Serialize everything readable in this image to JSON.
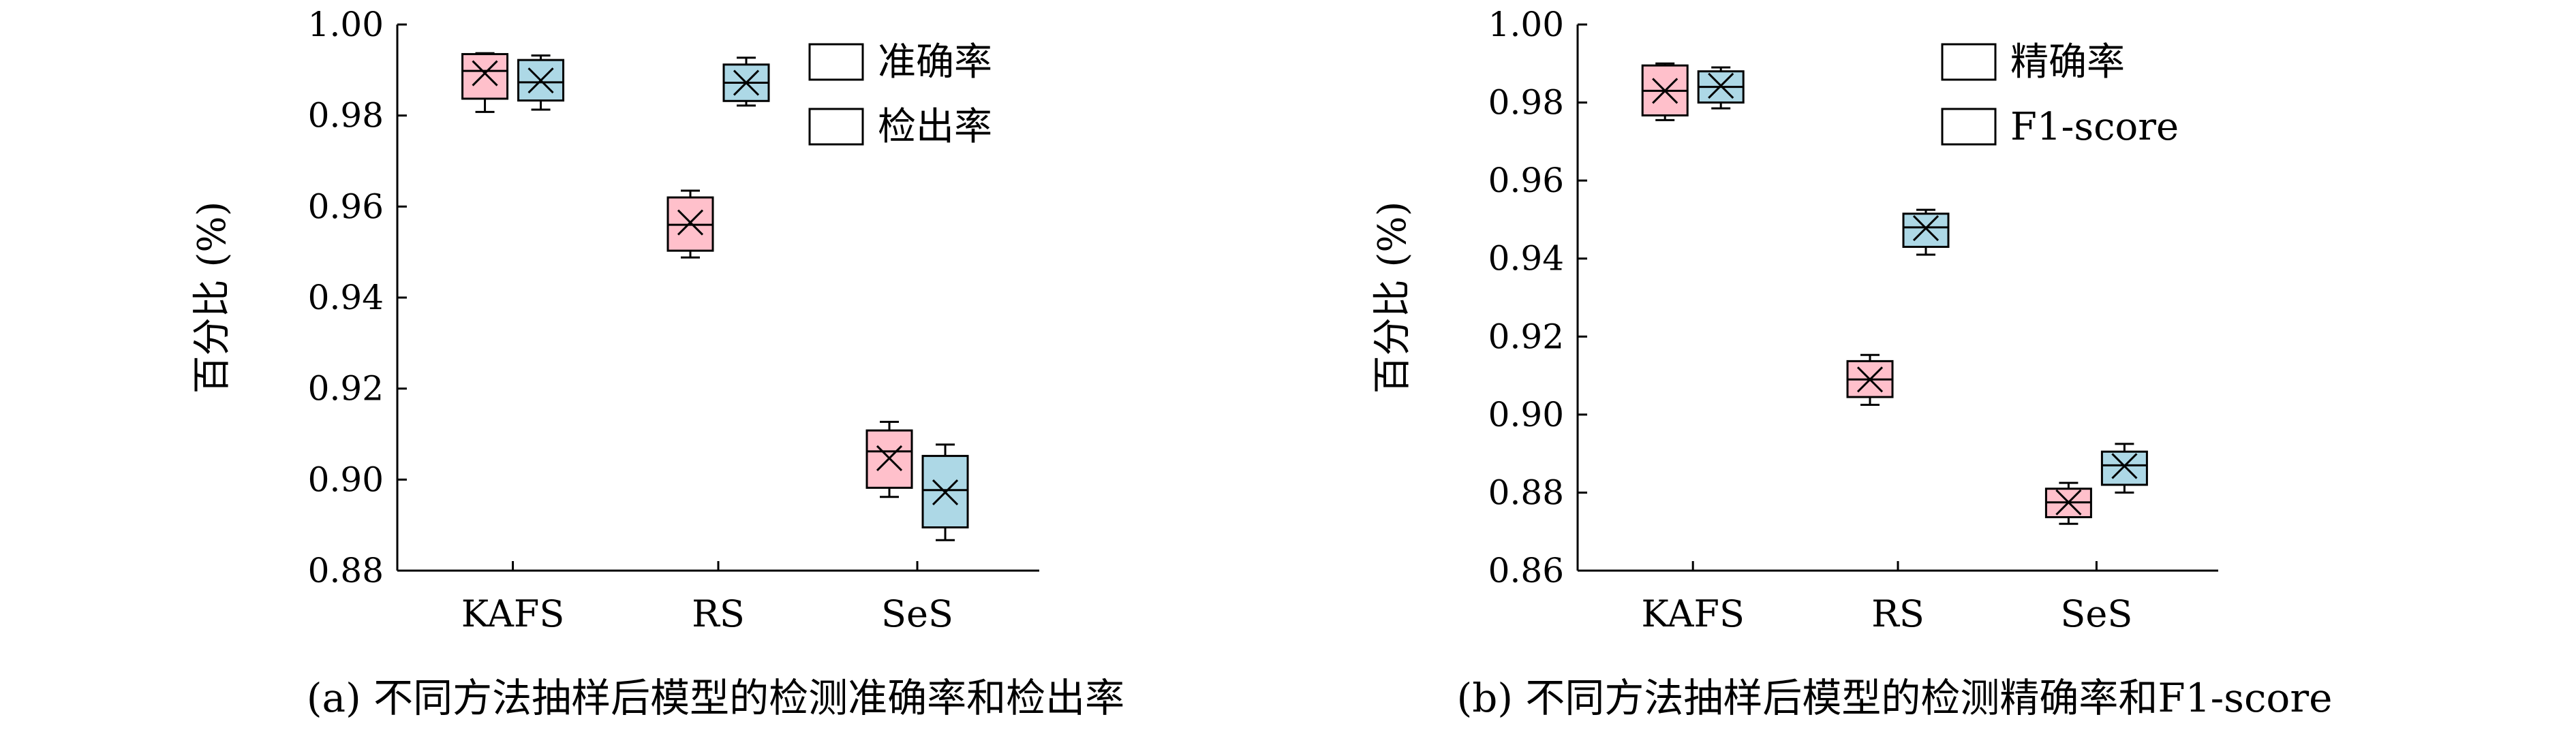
{
  "chart_data": [
    {
      "type": "box",
      "categories": [
        "KAFS",
        "RS",
        "SeS"
      ],
      "ylabel": "百分比 (%)",
      "ylim": [
        0.88,
        1.0
      ],
      "yticks": [
        0.88,
        0.9,
        0.92,
        0.94,
        0.96,
        0.98,
        1.0
      ],
      "ytick_labels": [
        "0.88",
        "0.90",
        "0.92",
        "0.94",
        "0.96",
        "0.98",
        "1.00"
      ],
      "legend_position": "top-right",
      "caption": "(a) 不同方法抽样后模型的检测准确率和检出率",
      "series": [
        {
          "name": "准确率",
          "color": "#ffc0cb",
          "boxes": [
            {
              "min": 0.9808,
              "q1": 0.9837,
              "median": 0.9898,
              "q3": 0.9935,
              "max": 0.9937,
              "mean": 0.9893
            },
            {
              "min": 0.9488,
              "q1": 0.9503,
              "median": 0.956,
              "q3": 0.962,
              "max": 0.9635,
              "mean": 0.9565
            },
            {
              "min": 0.8962,
              "q1": 0.8982,
              "median": 0.9062,
              "q3": 0.9108,
              "max": 0.9127,
              "mean": 0.9047
            }
          ]
        },
        {
          "name": "检出率",
          "color": "#add8e6",
          "boxes": [
            {
              "min": 0.9813,
              "q1": 0.9833,
              "median": 0.9873,
              "q3": 0.9922,
              "max": 0.9932,
              "mean": 0.9877
            },
            {
              "min": 0.9822,
              "q1": 0.9832,
              "median": 0.9872,
              "q3": 0.9912,
              "max": 0.9927,
              "mean": 0.9872
            },
            {
              "min": 0.8867,
              "q1": 0.8895,
              "median": 0.8977,
              "q3": 0.9052,
              "max": 0.9077,
              "mean": 0.8972
            }
          ]
        }
      ]
    },
    {
      "type": "box",
      "categories": [
        "KAFS",
        "RS",
        "SeS"
      ],
      "ylabel": "百分比 (%)",
      "ylim": [
        0.86,
        1.0
      ],
      "yticks": [
        0.86,
        0.88,
        0.9,
        0.92,
        0.94,
        0.96,
        0.98,
        1.0
      ],
      "ytick_labels": [
        "0.86",
        "0.88",
        "0.90",
        "0.92",
        "0.94",
        "0.96",
        "0.98",
        "1.00"
      ],
      "legend_position": "top-right",
      "caption": "(b) 不同方法抽样后模型的检测精确率和F1-score",
      "series": [
        {
          "name": "精确率",
          "color": "#ffc0cb",
          "boxes": [
            {
              "min": 0.9755,
              "q1": 0.9767,
              "median": 0.983,
              "q3": 0.9895,
              "max": 0.99,
              "mean": 0.983
            },
            {
              "min": 0.9025,
              "q1": 0.9045,
              "median": 0.909,
              "q3": 0.9137,
              "max": 0.9153,
              "mean": 0.909
            },
            {
              "min": 0.872,
              "q1": 0.8737,
              "median": 0.8775,
              "q3": 0.881,
              "max": 0.8825,
              "mean": 0.8775
            }
          ]
        },
        {
          "name": "F1-score",
          "color": "#add8e6",
          "boxes": [
            {
              "min": 0.9785,
              "q1": 0.98,
              "median": 0.984,
              "q3": 0.988,
              "max": 0.989,
              "mean": 0.9843
            },
            {
              "min": 0.941,
              "q1": 0.943,
              "median": 0.948,
              "q3": 0.9515,
              "max": 0.9525,
              "mean": 0.9478
            },
            {
              "min": 0.88,
              "q1": 0.882,
              "median": 0.887,
              "q3": 0.8905,
              "max": 0.8925,
              "mean": 0.8868
            }
          ]
        }
      ]
    }
  ]
}
